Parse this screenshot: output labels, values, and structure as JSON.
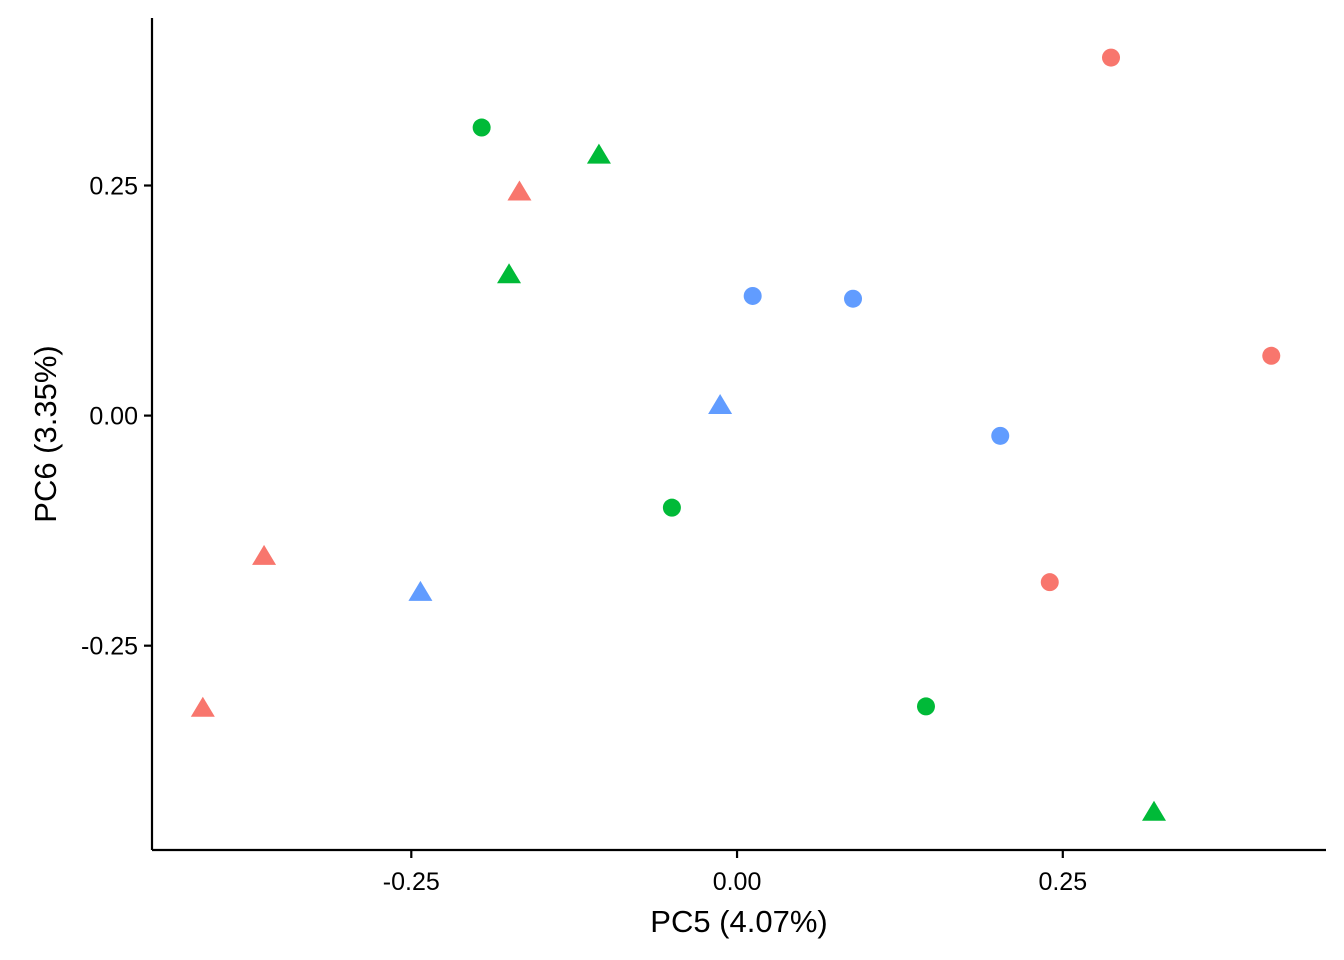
{
  "chart_data": {
    "type": "scatter",
    "title": "",
    "xlabel": "PC5 (4.07%)",
    "ylabel": "PC6 (3.35%)",
    "xlim": [
      -0.449,
      0.452
    ],
    "ylim": [
      -0.472,
      0.432
    ],
    "x_ticks": [
      -0.25,
      0.0,
      0.25
    ],
    "x_tick_labels": [
      "-0.25",
      "0.00",
      "0.25"
    ],
    "y_ticks": [
      -0.25,
      0.0,
      0.25
    ],
    "y_tick_labels": [
      "-0.25",
      "0.00",
      "0.25"
    ],
    "grid": false,
    "legend": "none",
    "colors": {
      "red": "#F8766D",
      "green": "#00BA38",
      "blue": "#619CFF"
    },
    "points": [
      {
        "x": 0.287,
        "y": 0.389,
        "color": "red",
        "shape": "circle"
      },
      {
        "x": 0.41,
        "y": 0.065,
        "color": "red",
        "shape": "circle"
      },
      {
        "x": 0.24,
        "y": -0.181,
        "color": "red",
        "shape": "circle"
      },
      {
        "x": -0.167,
        "y": 0.242,
        "color": "red",
        "shape": "triangle"
      },
      {
        "x": -0.363,
        "y": -0.154,
        "color": "red",
        "shape": "triangle"
      },
      {
        "x": -0.41,
        "y": -0.319,
        "color": "red",
        "shape": "triangle"
      },
      {
        "x": -0.196,
        "y": 0.313,
        "color": "green",
        "shape": "circle"
      },
      {
        "x": -0.05,
        "y": -0.1,
        "color": "green",
        "shape": "circle"
      },
      {
        "x": 0.145,
        "y": -0.316,
        "color": "green",
        "shape": "circle"
      },
      {
        "x": -0.106,
        "y": 0.282,
        "color": "green",
        "shape": "triangle"
      },
      {
        "x": -0.175,
        "y": 0.152,
        "color": "green",
        "shape": "triangle"
      },
      {
        "x": 0.32,
        "y": -0.432,
        "color": "green",
        "shape": "triangle"
      },
      {
        "x": 0.012,
        "y": 0.13,
        "color": "blue",
        "shape": "circle"
      },
      {
        "x": 0.089,
        "y": 0.127,
        "color": "blue",
        "shape": "circle"
      },
      {
        "x": 0.202,
        "y": -0.022,
        "color": "blue",
        "shape": "circle"
      },
      {
        "x": -0.013,
        "y": 0.01,
        "color": "blue",
        "shape": "triangle"
      },
      {
        "x": -0.243,
        "y": -0.193,
        "color": "blue",
        "shape": "triangle"
      }
    ]
  }
}
